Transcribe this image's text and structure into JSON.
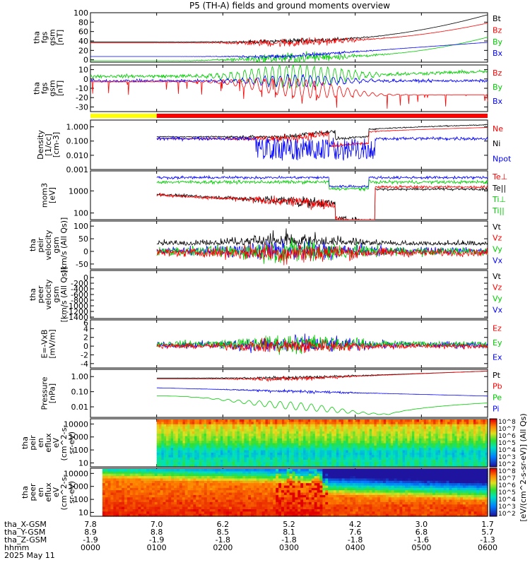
{
  "title": "P5 (TH-A) fields and ground moments overview",
  "chart_data": {
    "type": "line",
    "x_time_labels": [
      "0000",
      "0100",
      "0200",
      "0300",
      "0400",
      "0500",
      "0600"
    ],
    "x_rows": [
      {
        "label": "tha_X-GSM",
        "values": [
          "7.8",
          "7.0",
          "6.2",
          "5.2",
          "4.2",
          "3.0",
          "1.7"
        ]
      },
      {
        "label": "tha_Y-GSM",
        "values": [
          "8.9",
          "8.8",
          "8.5",
          "8.1",
          "7.6",
          "6.8",
          "5.7"
        ]
      },
      {
        "label": "tha_Z-GSM",
        "values": [
          "-1.9",
          "-1.9",
          "-1.8",
          "-1.8",
          "-1.8",
          "-1.6",
          "-1.3"
        ]
      },
      {
        "label": "hhmm",
        "values": [
          "0000",
          "0100",
          "0200",
          "0300",
          "0400",
          "0500",
          "0600"
        ]
      }
    ],
    "date_label": "2025 May 11",
    "mode_bar": {
      "yellow_until_hours": 1.0,
      "colors": {
        "slow": "#ffff00",
        "fast": "#ff0000"
      }
    },
    "panels": [
      {
        "id": "fgs_btot",
        "ylabel": [
          "tha",
          "fgs",
          "gsm",
          "[nT]"
        ],
        "ylim": [
          -5,
          100
        ],
        "yticks": [
          "0",
          "20",
          "40",
          "60",
          "80",
          "100"
        ],
        "legend": [
          {
            "name": "Bt",
            "color": "#000000"
          },
          {
            "name": "Bz",
            "color": "#ff0000"
          },
          {
            "name": "By",
            "color": "#00cc00"
          },
          {
            "name": "Bx",
            "color": "#0000ff"
          }
        ]
      },
      {
        "id": "fgs_comp",
        "ylabel": [
          "tha",
          "fgs",
          "gsm",
          "[nT]"
        ],
        "ylim": [
          -35,
          15
        ],
        "yticks": [
          "-30",
          "-20",
          "-10",
          "0",
          "10"
        ],
        "legend": [
          {
            "name": "Bz",
            "color": "#ff0000"
          },
          {
            "name": "By",
            "color": "#00cc00"
          },
          {
            "name": "Bx",
            "color": "#0000ff"
          }
        ]
      },
      {
        "id": "density",
        "ylabel": [
          "Density",
          "[1/cc]",
          "[cm-3]"
        ],
        "ylim": [
          0.001,
          3
        ],
        "log": true,
        "yticks": [
          "1.000",
          "0.100",
          "0.010",
          "0.001"
        ],
        "legend": [
          {
            "name": "Ne",
            "color": "#ff0000"
          },
          {
            "name": "Ni",
            "color": "#000000"
          },
          {
            "name": "Npot",
            "color": "#0000ff"
          }
        ]
      },
      {
        "id": "temp",
        "ylabel": [
          "mom3",
          "[eV]"
        ],
        "ylim": [
          50,
          8000
        ],
        "log": true,
        "yticks": [
          "1000",
          "100"
        ],
        "legend": [
          {
            "name": "Te⊥",
            "color": "#ff0000"
          },
          {
            "name": "Te||",
            "color": "#000000"
          },
          {
            "name": "Ti⊥",
            "color": "#00cc00"
          },
          {
            "name": "Ti||",
            "color": "#00cc00"
          }
        ]
      },
      {
        "id": "peir_vel",
        "ylabel": [
          "tha",
          "peir",
          "velocity",
          "gsm",
          "[km/s (All Qs)]"
        ],
        "ylim": [
          -70,
          120
        ],
        "yticks": [
          "100",
          "50",
          "0",
          "-50"
        ],
        "legend": [
          {
            "name": "Vt",
            "color": "#000000"
          },
          {
            "name": "Vz",
            "color": "#ff0000"
          },
          {
            "name": "Vy",
            "color": "#00cc00"
          },
          {
            "name": "Vx",
            "color": "#0000ff"
          }
        ]
      },
      {
        "id": "peer_vel",
        "ylabel": [
          "tha",
          "peer",
          "velocity",
          "gsm",
          "[km/s (All Qs)]"
        ],
        "ylim": [
          -1450,
          250
        ],
        "yticks": [
          "0",
          "-200",
          "-400",
          "-600",
          "-800",
          "-1000",
          "-1200",
          "-1400"
        ],
        "legend": [
          {
            "name": "Vt",
            "color": "#000000"
          },
          {
            "name": "Vz",
            "color": "#ff0000"
          },
          {
            "name": "Vy",
            "color": "#00cc00"
          },
          {
            "name": "Vx",
            "color": "#0000ff"
          }
        ]
      },
      {
        "id": "efield",
        "ylabel": [
          "E=-VxB",
          "[mV/m]"
        ],
        "ylim": [
          -5,
          6
        ],
        "yticks": [
          "4",
          "2",
          "0",
          "-2",
          "-4"
        ],
        "ytop": "6",
        "legend": [
          {
            "name": "Ez",
            "color": "#ff0000"
          },
          {
            "name": "Ey",
            "color": "#00cc00"
          },
          {
            "name": "Ex",
            "color": "#0000ff"
          }
        ]
      },
      {
        "id": "pressure",
        "ylabel": [
          "Pressure",
          "[nPa]"
        ],
        "ylim": [
          0.002,
          3
        ],
        "log": true,
        "yticks": [
          "1.00",
          "0.10",
          "0.01"
        ],
        "legend": [
          {
            "name": "Pt",
            "color": "#000000"
          },
          {
            "name": "Pb",
            "color": "#ff0000"
          },
          {
            "name": "Pe",
            "color": "#00cc00"
          },
          {
            "name": "Pi",
            "color": "#0000ff"
          }
        ]
      },
      {
        "id": "peir_spec",
        "type": "heatmap",
        "ylabel": [
          "tha",
          "peir",
          "en",
          "eflux",
          "eV",
          "(cm^2-s-",
          "sr-eV)"
        ],
        "ylim": [
          5,
          25000
        ],
        "log": true,
        "yticks": [
          "10000",
          "1000",
          "100",
          "10"
        ]
      },
      {
        "id": "peer_spec",
        "type": "heatmap",
        "ylabel": [
          "tha",
          "peer",
          "en",
          "eflux",
          "eV",
          "(cm^2-s-",
          "sr-eV)"
        ],
        "ylim": [
          5,
          25000
        ],
        "log": true,
        "yticks": [
          "10000",
          "1000",
          "100",
          "10"
        ]
      }
    ],
    "colorbar": {
      "label": "[eV/(cm^2-s-sr-eV)] (All Qs)",
      "ticks_top": [
        "10^8",
        "10^7",
        "10^6",
        "10^5",
        "10^4",
        "10^3",
        "10^2"
      ],
      "ticks_bottom": [
        "10^8",
        "10^7",
        "10^6",
        "10^5",
        "10^4",
        "10^3",
        "10^2"
      ]
    }
  }
}
